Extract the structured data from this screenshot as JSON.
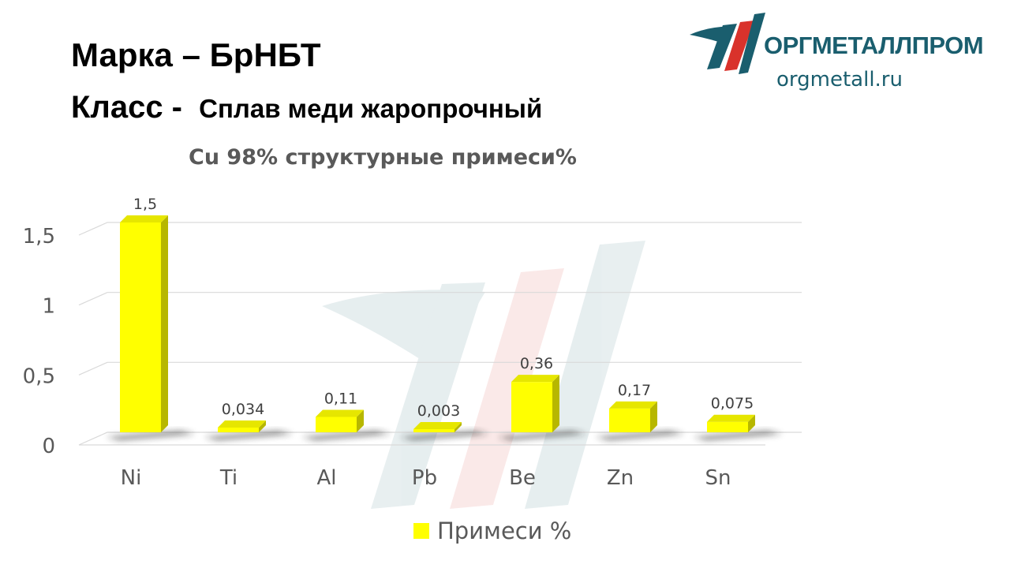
{
  "header": {
    "brand_label": "Марка",
    "brand_sep": "–",
    "brand_value": "БрНБТ",
    "class_label": "Класс -",
    "class_value": "Сплав меди жаропрочный"
  },
  "logo": {
    "name": "ОРГМЕТАЛЛПРОМ",
    "url": "orgmetall.ru",
    "mark_icon": "orgmetall-logo-icon"
  },
  "colors": {
    "bar": "#ffff00",
    "bar_side": "#b7b700",
    "bar_top": "#e6e600",
    "logo": "#1a5e6e",
    "logo_accent": "#d9322b",
    "text_gray": "#595959"
  },
  "chart_data": {
    "type": "bar",
    "title": "Cu 98% структурные примеси%",
    "categories": [
      "Ni",
      "Ti",
      "Al",
      "Pb",
      "Be",
      "Zn",
      "Sn"
    ],
    "series": [
      {
        "name": "Примеси %",
        "values": [
          1.5,
          0.034,
          0.11,
          0.003,
          0.36,
          0.17,
          0.075
        ],
        "labels": [
          "1,5",
          "0,034",
          "0,11",
          "0,003",
          "0,36",
          "0,17",
          "0,075"
        ]
      }
    ],
    "yticks": [
      0,
      0.5,
      1,
      1.5
    ],
    "ytick_labels": [
      "0",
      "0,5",
      "1",
      "1,5"
    ],
    "ylim": [
      0,
      1.5
    ],
    "xlabel": "",
    "ylabel": "",
    "grid": true,
    "legend": "bottom",
    "style": "3d"
  }
}
